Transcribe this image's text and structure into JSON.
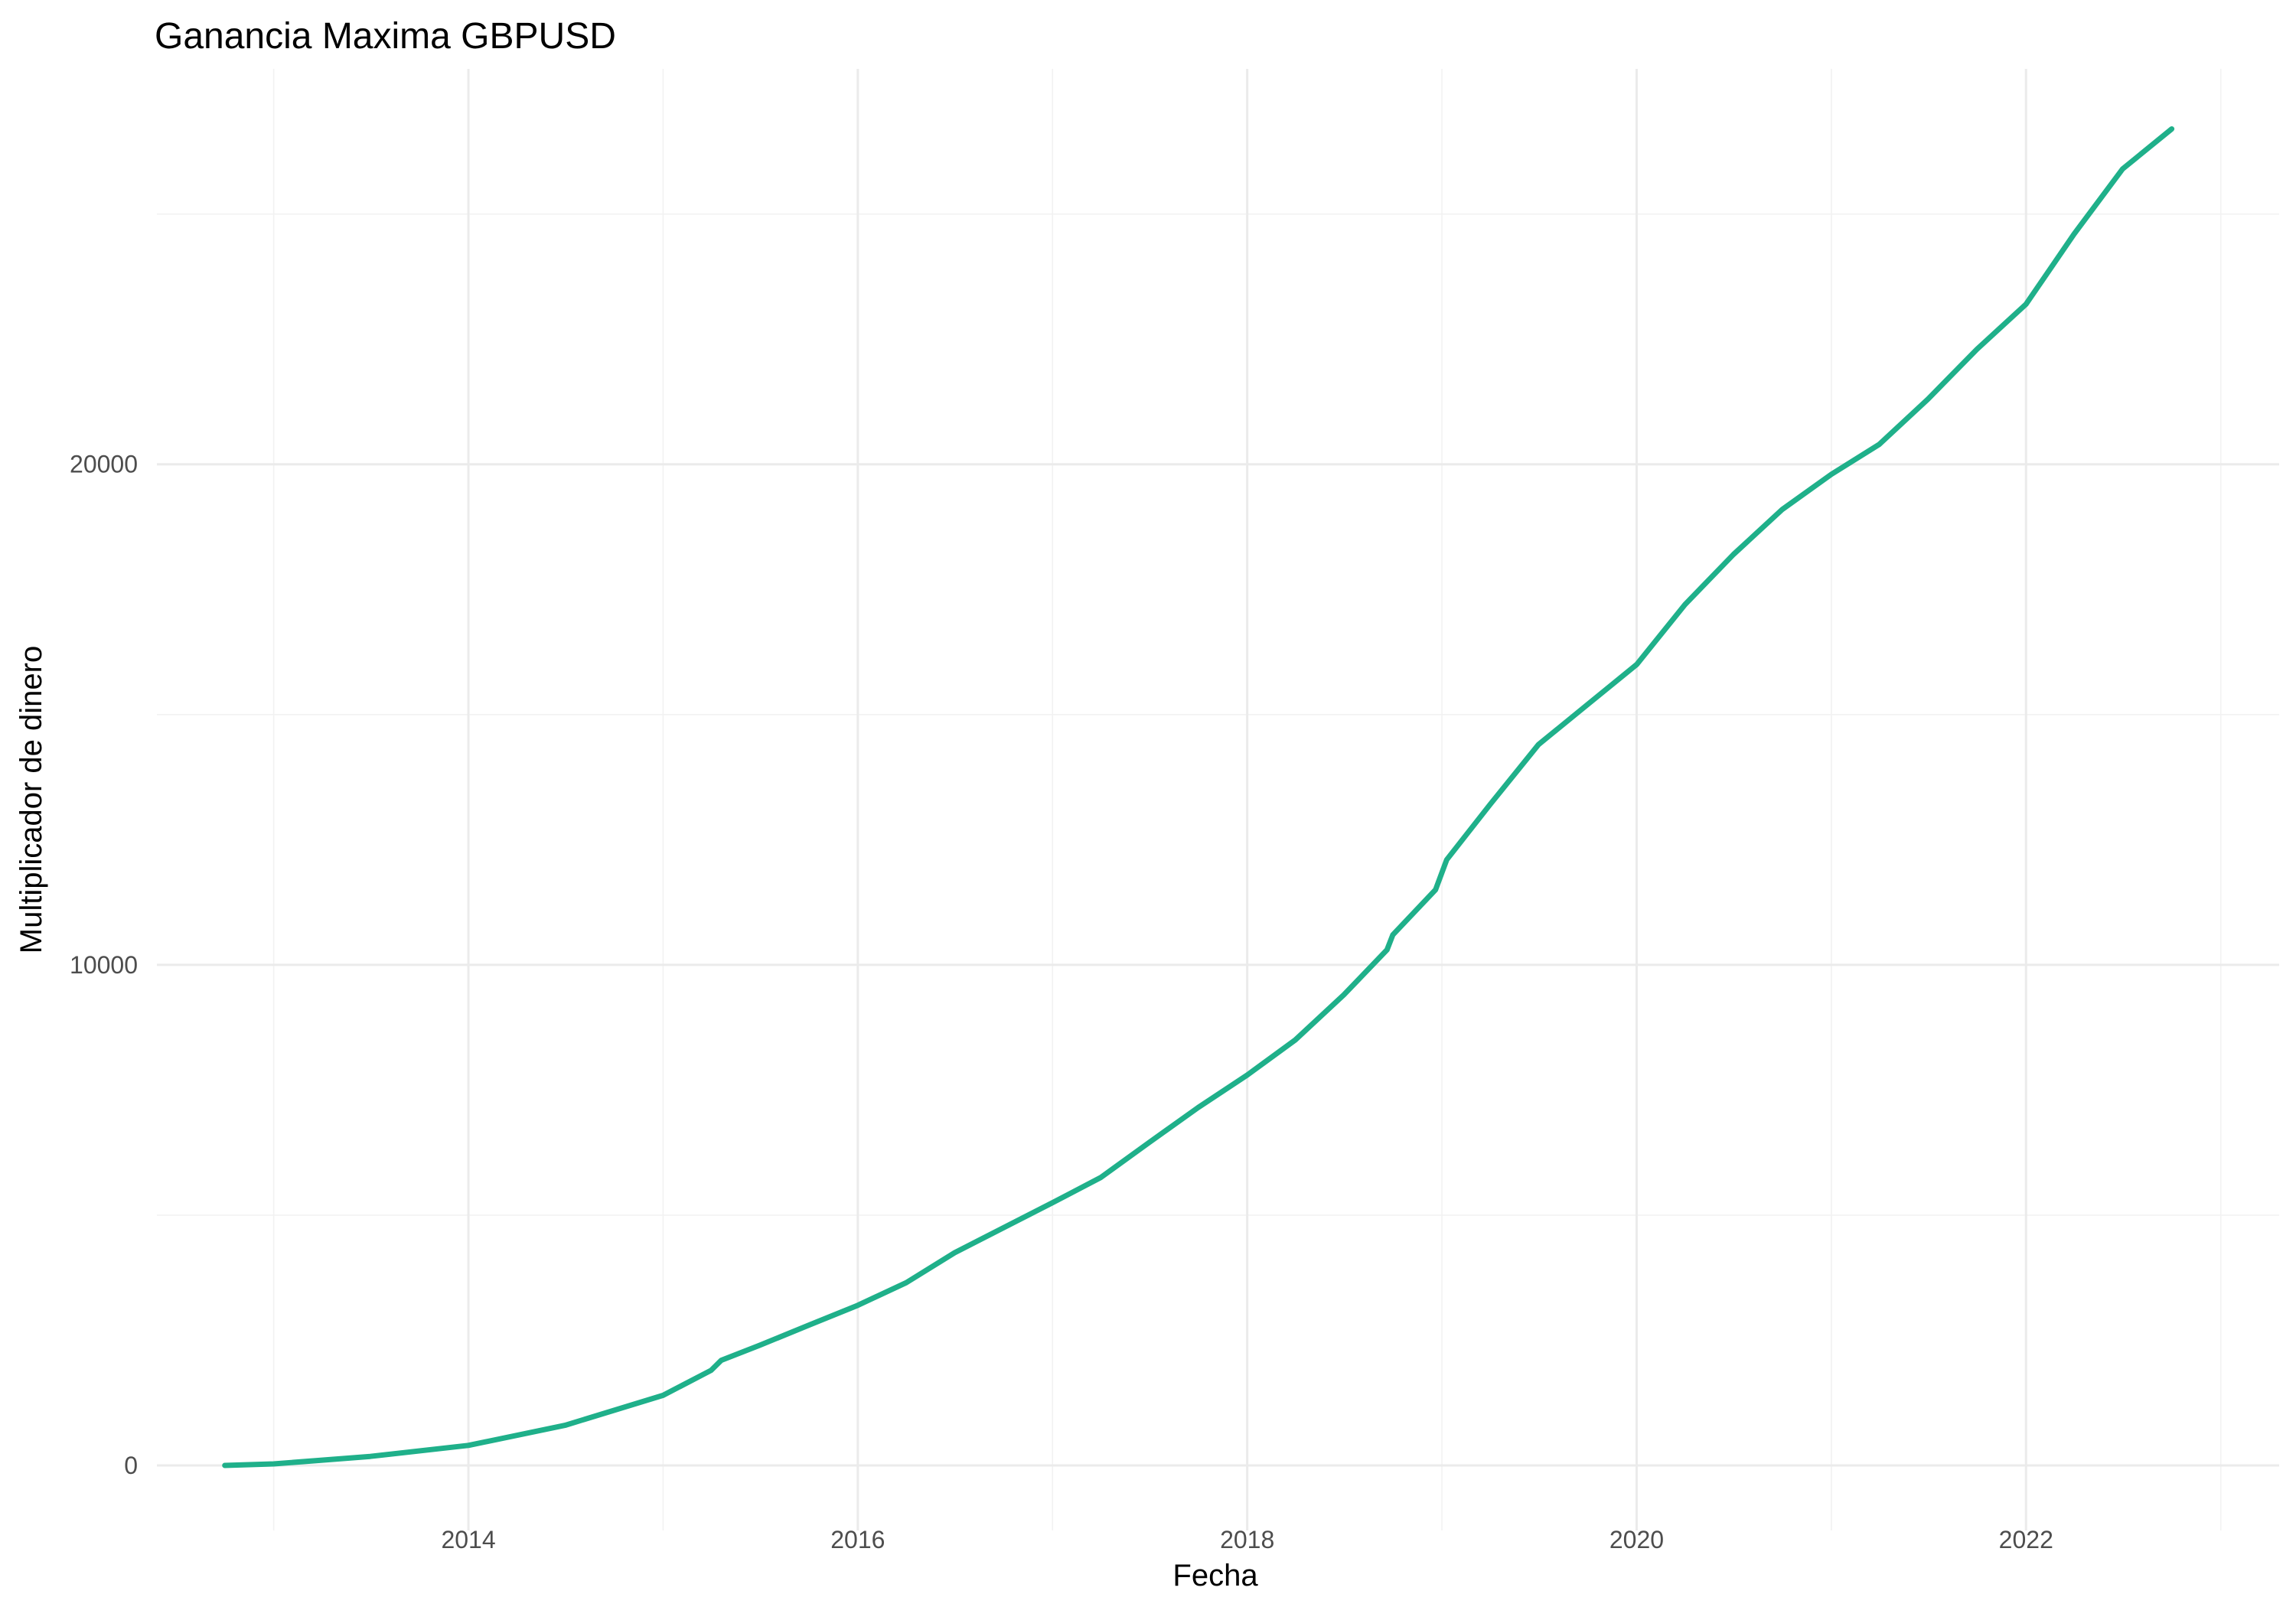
{
  "chart_data": {
    "type": "line",
    "title": "Ganancia Maxima GBPUSD",
    "xlabel": "Fecha",
    "ylabel": "Multiplicador de dinero",
    "x_ticks": [
      "2014",
      "2016",
      "2018",
      "2020",
      "2022"
    ],
    "y_ticks": [
      "0",
      "10000",
      "20000"
    ],
    "xlim": [
      2012.4,
      2023.3
    ],
    "ylim": [
      -1300,
      27900
    ],
    "grid": true,
    "legend": "none",
    "colors": {
      "line": "#1fb08a",
      "grid_major": "#ebebeb",
      "grid_minor": "#f2f2f2"
    },
    "series": [
      {
        "x": [
          "2012-10-01",
          "2013-01-01",
          "2013-07-01",
          "2014-01-01",
          "2014-07-01",
          "2015-01-01",
          "2015-04-01",
          "2015-04-20",
          "2015-07-01",
          "2015-10-01",
          "2016-01-01",
          "2016-04-01",
          "2016-07-01",
          "2017-01-01",
          "2017-04-01",
          "2017-07-01",
          "2017-10-01",
          "2018-01-01",
          "2018-04-01",
          "2018-07-01",
          "2018-09-20",
          "2018-10-01",
          "2018-12-20",
          "2019-01-10",
          "2019-04-01",
          "2019-07-01",
          "2019-10-01",
          "2020-01-01",
          "2020-04-01",
          "2020-07-01",
          "2020-10-01",
          "2021-01-01",
          "2021-04-01",
          "2021-07-01",
          "2021-10-01",
          "2022-01-01",
          "2022-04-01",
          "2022-07-01",
          "2022-10-01"
        ],
        "values": [
          0,
          30,
          180,
          400,
          800,
          1400,
          1900,
          2100,
          2400,
          2800,
          3200,
          3650,
          4250,
          5250,
          5750,
          6450,
          7150,
          7800,
          8500,
          9400,
          10300,
          10600,
          11500,
          12100,
          13200,
          14400,
          15200,
          16000,
          17200,
          18200,
          19100,
          19800,
          20400,
          21300,
          22300,
          23200,
          24600,
          25900,
          26700
        ]
      }
    ]
  }
}
